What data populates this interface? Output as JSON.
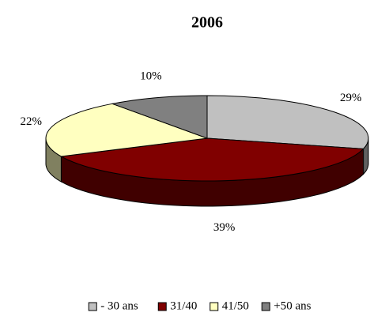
{
  "chart_data": {
    "type": "pie",
    "title": "2006",
    "categories": [
      "- 30 ans",
      "31/40",
      "41/50",
      "+50 ans"
    ],
    "values": [
      29,
      39,
      22,
      10
    ],
    "value_labels": [
      "29%",
      "39%",
      "22%",
      "10%"
    ],
    "colors": [
      "#c0c0c0",
      "#800000",
      "#ffffc0",
      "#808080"
    ],
    "legend": "bottom"
  }
}
